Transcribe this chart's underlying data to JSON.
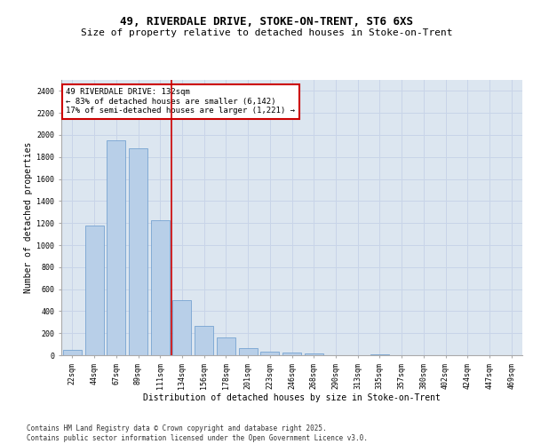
{
  "title_line1": "49, RIVERDALE DRIVE, STOKE-ON-TRENT, ST6 6XS",
  "title_line2": "Size of property relative to detached houses in Stoke-on-Trent",
  "xlabel": "Distribution of detached houses by size in Stoke-on-Trent",
  "ylabel": "Number of detached properties",
  "categories": [
    "22sqm",
    "44sqm",
    "67sqm",
    "89sqm",
    "111sqm",
    "134sqm",
    "156sqm",
    "178sqm",
    "201sqm",
    "223sqm",
    "246sqm",
    "268sqm",
    "290sqm",
    "313sqm",
    "335sqm",
    "357sqm",
    "380sqm",
    "402sqm",
    "424sqm",
    "447sqm",
    "469sqm"
  ],
  "values": [
    50,
    1175,
    1950,
    1875,
    1225,
    500,
    270,
    165,
    65,
    30,
    25,
    20,
    0,
    0,
    5,
    0,
    0,
    0,
    0,
    0,
    0
  ],
  "bar_color": "#b8cfe8",
  "bar_edge_color": "#6699cc",
  "vline_color": "#cc0000",
  "annotation_text": "49 RIVERDALE DRIVE: 132sqm\n← 83% of detached houses are smaller (6,142)\n17% of semi-detached houses are larger (1,221) →",
  "annotation_box_color": "#cc0000",
  "ylim": [
    0,
    2500
  ],
  "yticks": [
    0,
    200,
    400,
    600,
    800,
    1000,
    1200,
    1400,
    1600,
    1800,
    2000,
    2200,
    2400
  ],
  "grid_color": "#c8d4e8",
  "bg_color": "#dce6f0",
  "footer_line1": "Contains HM Land Registry data © Crown copyright and database right 2025.",
  "footer_line2": "Contains public sector information licensed under the Open Government Licence v3.0.",
  "title_fontsize": 9,
  "subtitle_fontsize": 8,
  "label_fontsize": 7,
  "tick_fontsize": 6,
  "footer_fontsize": 5.5,
  "annotation_fontsize": 6.5
}
